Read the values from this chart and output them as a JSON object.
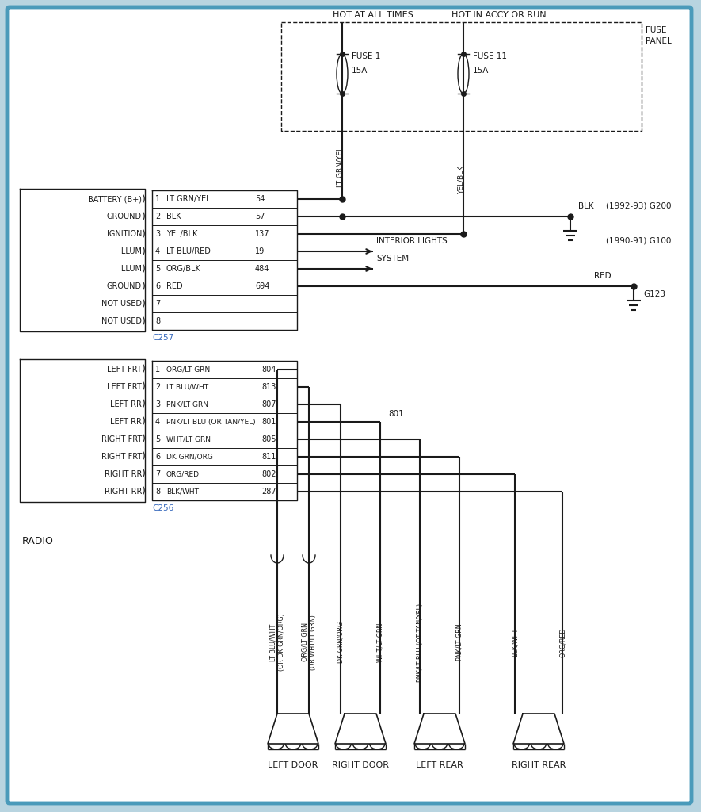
{
  "bg_color": "#b8d4e0",
  "diagram_bg": "#ffffff",
  "line_color": "#1a1a1a",
  "border_color": "#4a9aba",
  "hot_at_all_times": "HOT AT ALL TIMES",
  "hot_in_accy_or_run": "HOT IN ACCY OR RUN",
  "fuse_panel": "FUSE\nPANEL",
  "fuse1_label1": "FUSE 1",
  "fuse1_label2": "15A",
  "fuse11_label1": "FUSE 11",
  "fuse11_label2": "15A",
  "wire_lt_grn_yel": "LT GRN/YEL",
  "wire_yel_blk": "YEL/BLK",
  "connector_top_pins": [
    {
      "num": "1",
      "wire": "LT GRN/YEL",
      "circuit": "54",
      "label": "BATTERY (B+)"
    },
    {
      "num": "2",
      "wire": "BLK",
      "circuit": "57",
      "label": "GROUND"
    },
    {
      "num": "3",
      "wire": "YEL/BLK",
      "circuit": "137",
      "label": "IGNITION"
    },
    {
      "num": "4",
      "wire": "LT BLU/RED",
      "circuit": "19",
      "label": "ILLUM"
    },
    {
      "num": "5",
      "wire": "ORG/BLK",
      "circuit": "484",
      "label": "ILLUM"
    },
    {
      "num": "6",
      "wire": "RED",
      "circuit": "694",
      "label": "GROUND"
    },
    {
      "num": "7",
      "wire": "",
      "circuit": "",
      "label": "NOT USED"
    },
    {
      "num": "8",
      "wire": "",
      "circuit": "",
      "label": "NOT USED"
    }
  ],
  "connector_top_id": "C257",
  "connector_bottom_pins": [
    {
      "num": "1",
      "wire": "ORG/LT GRN",
      "circuit": "804",
      "label": "LEFT FRT"
    },
    {
      "num": "2",
      "wire": "LT BLU/WHT",
      "circuit": "813",
      "label": "LEFT FRT"
    },
    {
      "num": "3",
      "wire": "PNK/LT GRN",
      "circuit": "807",
      "label": "LEFT RR"
    },
    {
      "num": "4",
      "wire": "PNK/LT BLU (OR TAN/YEL)",
      "circuit": "801",
      "label": "LEFT RR"
    },
    {
      "num": "5",
      "wire": "WHT/LT GRN",
      "circuit": "805",
      "label": "RIGHT FRT"
    },
    {
      "num": "6",
      "wire": "DK GRN/ORG",
      "circuit": "811",
      "label": "RIGHT FRT"
    },
    {
      "num": "7",
      "wire": "ORG/RED",
      "circuit": "802",
      "label": "RIGHT RR"
    },
    {
      "num": "8",
      "wire": "BLK/WHT",
      "circuit": "287",
      "label": "RIGHT RR"
    }
  ],
  "connector_bottom_id": "C256",
  "radio_label": "RADIO",
  "interior_lights_line1": "INTERIOR LIGHTS",
  "interior_lights_line2": "SYSTEM",
  "blk_label": "BLK",
  "red_label": "RED",
  "g200_label": "(1992-93) G200",
  "g100_label": "(1990-91) G100",
  "g123_label": "G123",
  "spk_wire_labels": [
    "LT BLU/WHT\n(OR DK GRN/ORG)",
    "ORG/LT GRN\n(OR WHT/LT GRN)",
    "DK GRN/ORG",
    "WHT/LT GRN",
    "PNK/LT BLU (OT TAN/YEL)",
    "PNK/LT GRN",
    "BLK/WHT",
    "ORG/RED"
  ],
  "door_labels": [
    "LEFT DOOR",
    "RIGHT DOOR",
    "LEFT REAR",
    "RIGHT REAR"
  ]
}
